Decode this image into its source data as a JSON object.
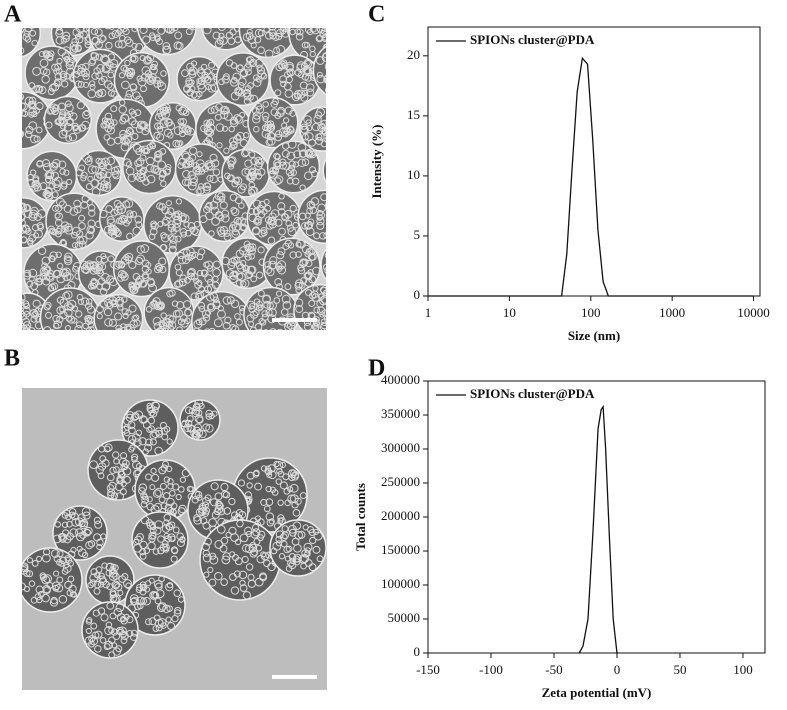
{
  "images": [
    {
      "label": "A"
    },
    {
      "label": "B"
    }
  ],
  "chart_data": [
    {
      "type": "line",
      "label": "C",
      "xlabel": "Size (nm)",
      "ylabel": "Intensity (%)",
      "xscale": "log",
      "x": [
        1,
        43.82,
        50.75,
        58.77,
        68.06,
        78.82,
        91.28,
        105.7,
        122.4,
        141.8,
        164.2,
        10000
      ],
      "series": [
        {
          "name": "SPIONs cluster@PDA",
          "color": "#111111",
          "values": [
            0,
            0,
            3.5,
            10.5,
            17,
            19.8,
            19.3,
            13,
            5.5,
            1.2,
            0,
            0
          ]
        }
      ],
      "xlim": [
        1,
        12000
      ],
      "ylim": [
        0,
        22.4
      ],
      "xticks": [
        1,
        10,
        100,
        1000,
        10000
      ],
      "yticks": [
        0,
        5,
        10,
        15,
        20
      ],
      "legend": "upper left"
    },
    {
      "type": "line",
      "label": "D",
      "xlabel": "Zeta potential (mV)",
      "ylabel": "Total counts",
      "x": [
        -30,
        -27,
        -23,
        -19,
        -15,
        -12.5,
        -11,
        -9,
        -6,
        -3,
        0,
        1
      ],
      "series": [
        {
          "name": "SPIONs cluster@PDA",
          "color": "#111111",
          "values": [
            0,
            10000,
            50000,
            180000,
            330000,
            358000,
            362000,
            300000,
            170000,
            50000,
            0,
            0
          ]
        }
      ],
      "xlim": [
        -150,
        117.5
      ],
      "ylim": [
        0,
        400000
      ],
      "xticks": [
        -150,
        -100,
        -50,
        0,
        50,
        100
      ],
      "yticks": [
        0,
        50000,
        100000,
        150000,
        200000,
        250000,
        300000,
        350000,
        400000
      ],
      "legend": "upper left"
    }
  ]
}
